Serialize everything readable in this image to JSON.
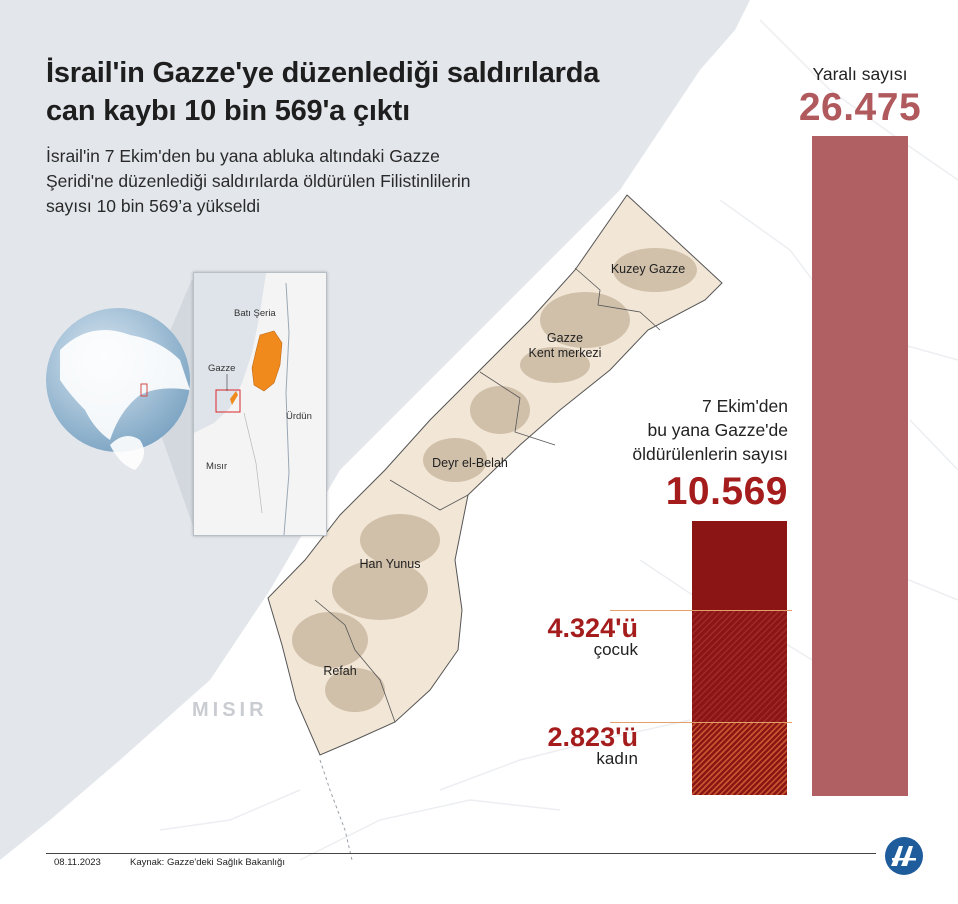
{
  "header": {
    "title_line1": "İsrail'in Gazze'ye düzenlediği saldırılarda",
    "title_line2": "can kaybı 10 bin 569'a çıktı",
    "subtitle_line1": "İsrail'in 7 Ekim'den bu yana abluka altındaki Gazze",
    "subtitle_line2": "Şeridi'ne düzenlediği saldırılarda öldürülen Filistinlilerin",
    "subtitle_line3": "sayısı 10 bin 569’a yükseldi"
  },
  "inset_map": {
    "west_bank": "Batı Şeria",
    "gaza": "Gazze",
    "jordan": "Ürdün",
    "egypt": "Mısır"
  },
  "gaza_map": {
    "districts": [
      "Kuzey Gazze",
      "Gazze",
      "Kent merkezi",
      "Deyr el-Belah",
      "Han Yunus",
      "Refah"
    ],
    "egypt_label": "MISIR"
  },
  "stats": {
    "wounded_label": "Yaralı sayısı",
    "wounded_value": "26.475",
    "killed_label_line1": "7 Ekim'den",
    "killed_label_line2": "bu yana Gazze'de",
    "killed_label_line3": "öldürülenlerin sayısı",
    "killed_value": "10.569",
    "children_value": "4.324'ü",
    "children_label": "çocuk",
    "women_value": "2.823'ü",
    "women_label": "kadın"
  },
  "chart_data": {
    "type": "bar",
    "categories": [
      "Yaralı sayısı",
      "7 Ekim'den bu yana Gazze'de öldürülenlerin sayısı"
    ],
    "values": [
      26475,
      10569
    ],
    "breakdown_of_killed": [
      {
        "name": "çocuk",
        "value": 4324
      },
      {
        "name": "kadın",
        "value": 2823
      }
    ]
  },
  "footer": {
    "date": "08.11.2023",
    "source": "Kaynak: Gazze'deki Sağlık Bakanlığı",
    "logo": "aa-logo"
  },
  "colors": {
    "wounded": "#b05f62",
    "killed": "#8b1414",
    "highlight_text": "#a51c1c",
    "sea": "#e3e7ec",
    "gaza_strip": "#f2e6d6",
    "west_bank_orange": "#f08a1d"
  }
}
